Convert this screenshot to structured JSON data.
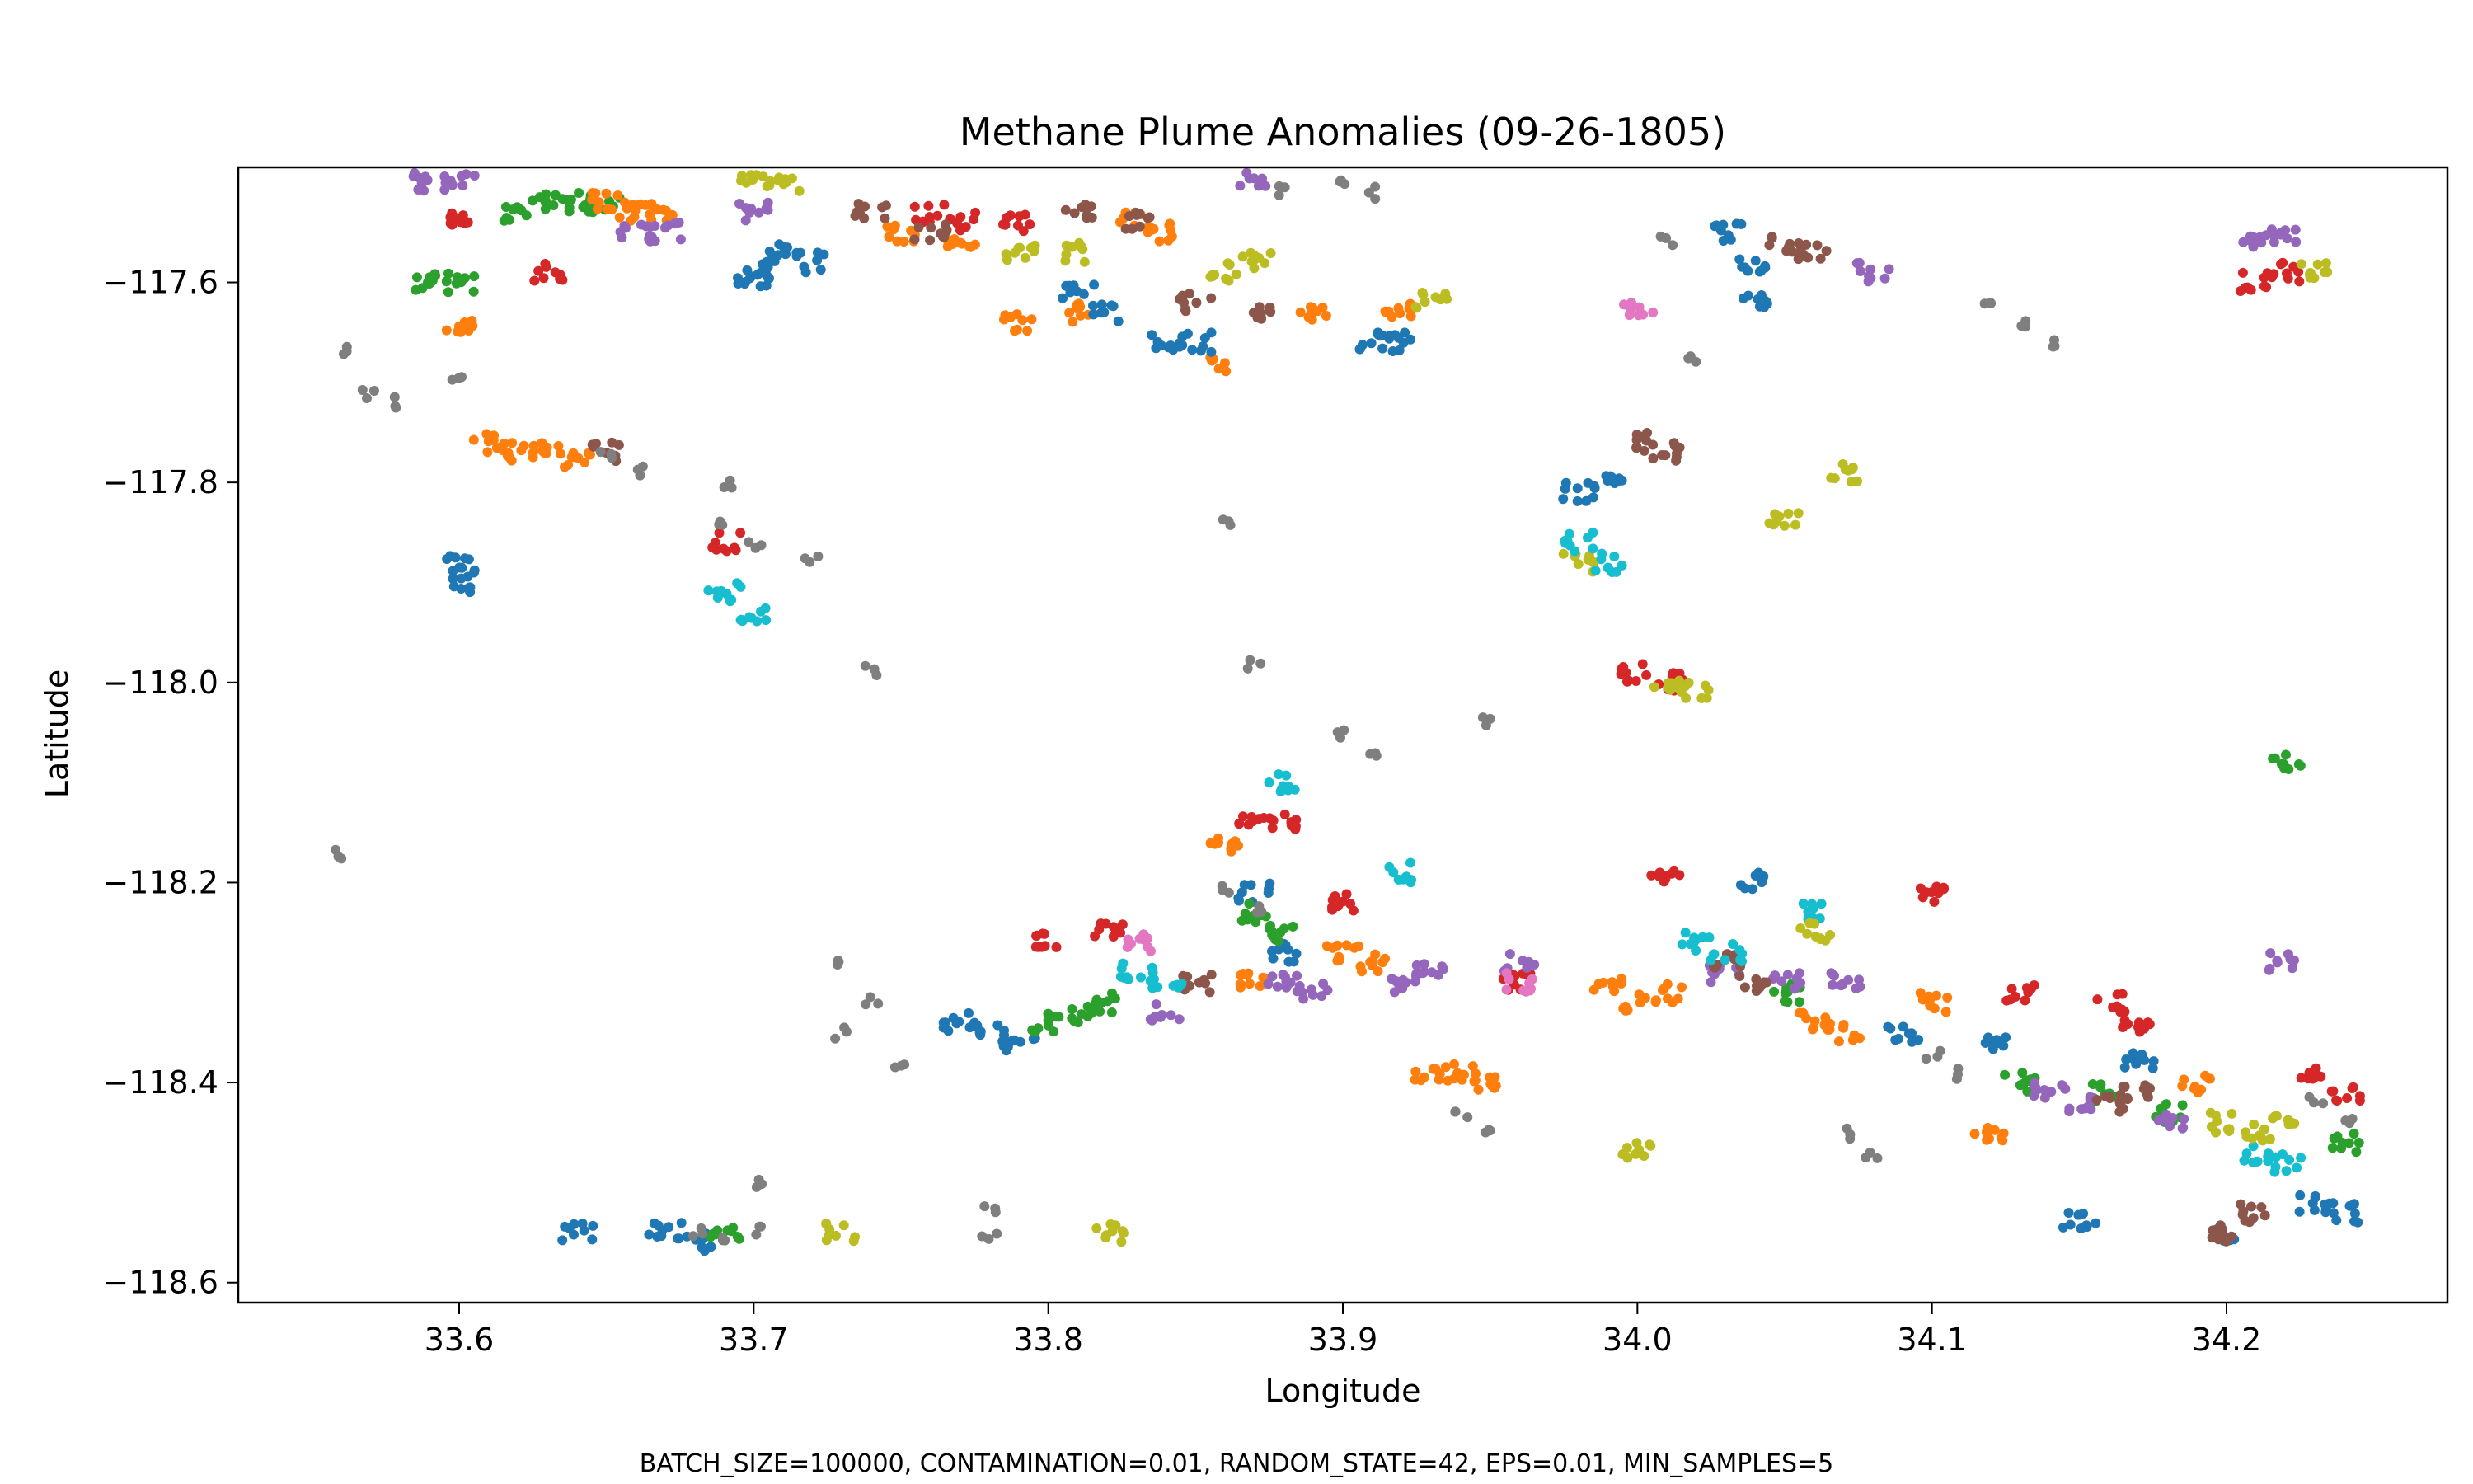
{
  "chart_data": {
    "type": "scatter",
    "title": "Methane Plume Anomalies (09-26-1805)",
    "xlabel": "Longitude",
    "ylabel": "Latitude",
    "xlim": [
      33.525,
      34.275
    ],
    "ylim": [
      -118.62,
      -117.485
    ],
    "x_ticks": [
      33.6,
      33.7,
      33.8,
      33.9,
      34.0,
      34.1,
      34.2
    ],
    "x_tick_labels": [
      "33.6",
      "33.7",
      "33.8",
      "33.9",
      "34.0",
      "34.1",
      "34.2"
    ],
    "y_ticks": [
      -117.6,
      -117.8,
      -118.0,
      -118.2,
      -118.4,
      -118.6
    ],
    "y_tick_labels": [
      "−117.6",
      "−117.8",
      "−118.0",
      "−118.2",
      "−118.4",
      "−118.6"
    ],
    "grid": false,
    "legend": "none",
    "palette": [
      "#1f77b4",
      "#ff7f0e",
      "#2ca02c",
      "#d62728",
      "#9467bd",
      "#8c564b",
      "#e377c2",
      "#7f7f7f",
      "#bcbd22",
      "#17becf"
    ],
    "clusters": [
      {
        "color": "#2ca02c",
        "x": [
          33.59,
          33.6,
          33.62,
          33.63,
          33.64,
          33.65
        ],
        "y": [
          -117.6,
          -117.6,
          -117.53,
          -117.52,
          -117.52,
          -117.52
        ]
      },
      {
        "color": "#ff7f0e",
        "x": [
          33.65,
          33.66,
          33.67,
          33.6,
          33.61,
          33.62,
          33.63,
          33.64,
          33.75,
          33.77,
          33.79,
          33.81,
          33.83,
          33.84,
          33.86,
          33.89,
          33.92
        ],
        "y": [
          -117.52,
          -117.53,
          -117.53,
          -117.64,
          -117.76,
          -117.77,
          -117.77,
          -117.78,
          -117.55,
          -117.56,
          -117.64,
          -117.63,
          -117.54,
          -117.55,
          -117.68,
          -117.63,
          -117.63
        ]
      },
      {
        "color": "#1f77b4",
        "x": [
          33.7,
          33.71,
          33.72,
          33.7,
          33.6,
          33.6,
          33.81,
          33.82,
          33.84,
          33.85,
          33.91,
          33.92,
          34.03,
          34.04,
          34.04,
          33.99,
          33.98
        ],
        "y": [
          -117.59,
          -117.57,
          -117.58,
          -117.6,
          -117.88,
          -117.9,
          -117.61,
          -117.63,
          -117.66,
          -117.66,
          -117.66,
          -117.66,
          -117.55,
          -117.58,
          -117.62,
          -117.8,
          -117.81
        ]
      },
      {
        "color": "#d62728",
        "x": [
          33.6,
          33.76,
          33.77,
          33.79,
          33.63,
          33.69,
          34.0,
          34.01,
          34.21,
          34.22
        ],
        "y": [
          -117.54,
          -117.53,
          -117.54,
          -117.54,
          -117.59,
          -117.86,
          -117.99,
          -118.0,
          -117.6,
          -117.59
        ]
      },
      {
        "color": "#8c564b",
        "x": [
          33.74,
          33.76,
          33.81,
          33.83,
          33.85,
          33.87,
          33.65,
          34.0,
          34.01,
          34.05,
          34.06
        ],
        "y": [
          -117.53,
          -117.55,
          -117.53,
          -117.54,
          -117.62,
          -117.63,
          -117.77,
          -117.76,
          -117.77,
          -117.56,
          -117.57
        ]
      },
      {
        "color": "#9467bd",
        "x": [
          33.59,
          33.6,
          33.66,
          33.67,
          33.87,
          34.08,
          33.7,
          34.21,
          34.22
        ],
        "y": [
          -117.5,
          -117.5,
          -117.55,
          -117.55,
          -117.5,
          -117.59,
          -117.53,
          -117.56,
          -117.55
        ]
      },
      {
        "color": "#bcbd22",
        "x": [
          33.7,
          33.71,
          33.79,
          33.81,
          33.86,
          33.87,
          33.93,
          33.98,
          34.01,
          34.02,
          34.07,
          34.05,
          34.23
        ],
        "y": [
          -117.5,
          -117.5,
          -117.57,
          -117.57,
          -117.59,
          -117.58,
          -117.62,
          -117.88,
          -118.0,
          -118.01,
          -117.79,
          -117.84,
          -117.59
        ]
      },
      {
        "color": "#17becf",
        "x": [
          33.69,
          33.7,
          33.98,
          33.99
        ],
        "y": [
          -117.91,
          -117.93,
          -117.86,
          -117.88
        ]
      },
      {
        "color": "#7f7f7f",
        "x": [
          33.56,
          33.57,
          33.58,
          33.6,
          33.65,
          33.66,
          33.69,
          33.69,
          33.7,
          33.72,
          33.74,
          33.88,
          33.9,
          33.91,
          33.86,
          33.87,
          34.01,
          34.02,
          33.95,
          33.56,
          34.12,
          34.13,
          34.14
        ],
        "y": [
          -117.67,
          -117.71,
          -117.72,
          -117.7,
          -117.77,
          -117.79,
          -117.84,
          -117.8,
          -117.86,
          -117.88,
          -117.99,
          -117.51,
          -117.5,
          -117.51,
          -117.84,
          -117.98,
          -117.56,
          -117.68,
          -118.04,
          -118.17,
          -117.62,
          -117.64,
          -117.66
        ]
      }
    ],
    "south_clusters": [
      {
        "color": "#1f77b4",
        "x": [
          33.77,
          33.78,
          33.79,
          33.64,
          33.67,
          33.68,
          34.04,
          34.09,
          34.12,
          34.17,
          34.23,
          34.24,
          33.87,
          33.88,
          34.15,
          34.2
        ],
        "y": [
          -118.34,
          -118.35,
          -118.36,
          -118.55,
          -118.55,
          -118.56,
          -118.2,
          -118.35,
          -118.36,
          -118.38,
          -118.52,
          -118.53,
          -118.21,
          -118.27,
          -118.54,
          -118.55
        ]
      },
      {
        "color": "#2ca02c",
        "x": [
          33.8,
          33.81,
          33.82,
          33.69,
          33.87,
          33.88,
          34.05,
          34.13,
          34.16,
          34.18,
          34.22,
          34.24
        ],
        "y": [
          -118.34,
          -118.33,
          -118.32,
          -118.55,
          -118.23,
          -118.25,
          -118.31,
          -118.4,
          -118.41,
          -118.43,
          -118.08,
          -118.46
        ]
      },
      {
        "color": "#ff7f0e",
        "x": [
          33.9,
          33.91,
          33.94,
          33.95,
          33.99,
          34.0,
          34.01,
          34.06,
          34.07,
          34.1,
          33.86,
          33.87,
          33.93,
          34.12,
          34.19
        ],
        "y": [
          -118.27,
          -118.28,
          -118.39,
          -118.4,
          -118.3,
          -118.32,
          -118.31,
          -118.34,
          -118.35,
          -118.32,
          -118.16,
          -118.3,
          -118.39,
          -118.45,
          -118.4
        ]
      },
      {
        "color": "#d62728",
        "x": [
          33.8,
          33.82,
          33.87,
          33.88,
          33.9,
          34.01,
          34.1,
          34.13,
          34.16,
          34.17,
          33.96,
          34.23,
          34.24
        ],
        "y": [
          -118.26,
          -118.25,
          -118.14,
          -118.14,
          -118.22,
          -118.19,
          -118.21,
          -118.31,
          -118.32,
          -118.34,
          -118.3,
          -118.39,
          -118.41
        ]
      },
      {
        "color": "#9467bd",
        "x": [
          33.88,
          33.89,
          33.92,
          33.93,
          33.96,
          34.03,
          34.05,
          34.07,
          34.14,
          34.15,
          34.18,
          33.84,
          34.22
        ],
        "y": [
          -118.3,
          -118.31,
          -118.3,
          -118.29,
          -118.28,
          -118.29,
          -118.3,
          -118.3,
          -118.41,
          -118.42,
          -118.44,
          -118.33,
          -118.28
        ]
      },
      {
        "color": "#8c564b",
        "x": [
          34.03,
          34.04,
          34.16,
          34.17,
          33.85,
          34.2,
          34.21
        ],
        "y": [
          -118.28,
          -118.3,
          -118.42,
          -118.41,
          -118.3,
          -118.55,
          -118.53
        ]
      },
      {
        "color": "#17becf",
        "x": [
          33.83,
          33.84,
          33.92,
          34.02,
          34.03,
          34.06,
          34.21,
          34.22,
          33.88
        ],
        "y": [
          -118.29,
          -118.3,
          -118.19,
          -118.26,
          -118.27,
          -118.23,
          -118.47,
          -118.48,
          -118.1
        ]
      },
      {
        "color": "#bcbd22",
        "x": [
          34.2,
          34.21,
          34.22,
          34.0,
          34.06,
          33.73,
          33.82
        ],
        "y": [
          -118.44,
          -118.45,
          -118.44,
          -118.47,
          -118.25,
          -118.55,
          -118.55
        ]
      },
      {
        "color": "#e377c2",
        "x": [
          33.83,
          33.96,
          34.0
        ],
        "y": [
          -118.26,
          -118.3,
          -117.63
        ]
      },
      {
        "color": "#7f7f7f",
        "x": [
          33.68,
          33.69,
          33.7,
          33.74,
          33.73,
          33.78,
          33.86,
          33.87,
          33.94,
          33.95,
          34.1,
          34.11,
          34.23,
          34.24,
          33.9,
          33.91,
          34.07,
          34.08,
          33.73,
          33.75,
          33.78,
          33.7
        ],
        "y": [
          -118.55,
          -118.56,
          -118.55,
          -118.32,
          -118.35,
          -118.55,
          -118.21,
          -118.23,
          -118.43,
          -118.45,
          -118.37,
          -118.39,
          -118.42,
          -118.44,
          -118.05,
          -118.07,
          -118.45,
          -118.47,
          -118.28,
          -118.38,
          -118.53,
          -118.5
        ]
      }
    ],
    "caption": "BATCH_SIZE=100000, CONTAMINATION=0.01, RANDOM_STATE=42, EPS=0.01, MIN_SAMPLES=5"
  }
}
